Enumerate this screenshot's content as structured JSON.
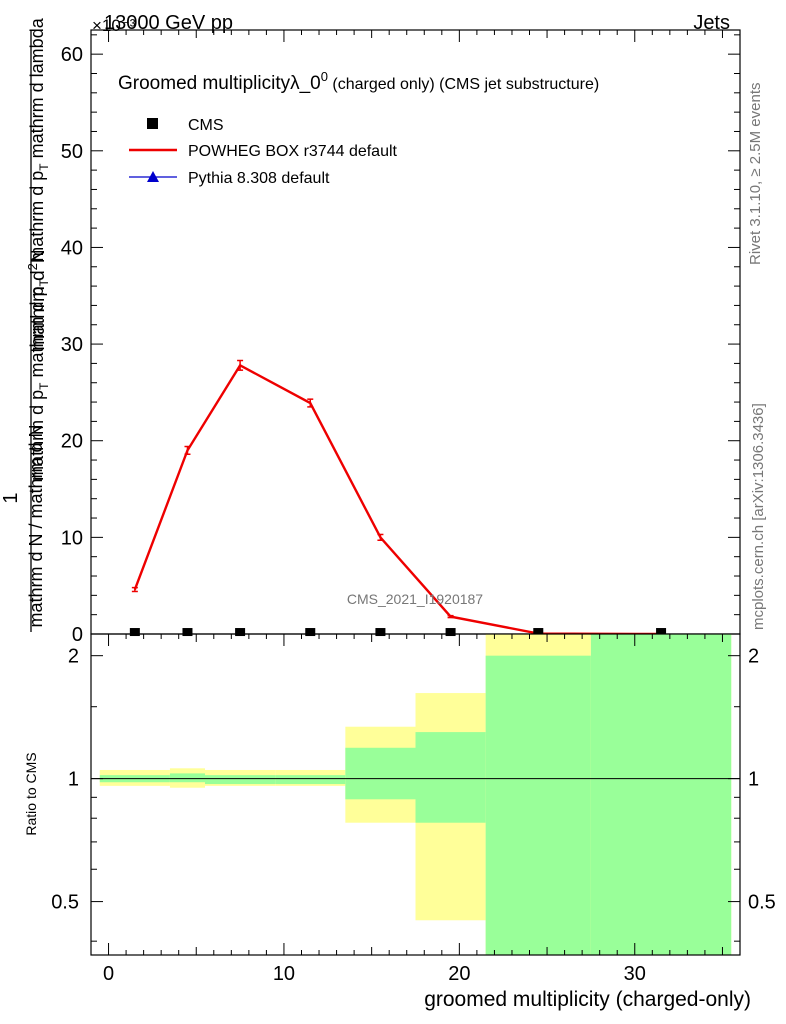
{
  "header": {
    "energy_label": "13000 GeV pp",
    "process_label": "Jets",
    "exponent_label": "×10⁻³"
  },
  "side_text": {
    "rivet": "Rivet 3.1.10, ≥ 2.5M events",
    "mcplots": "mcplots.cern.ch [arXiv:1306.3436]"
  },
  "chart_data": {
    "type": "line",
    "title": "Groomed multiplicityλ_0⁰ (charged only) (CMS jet substructure)",
    "analysis_label": "CMS_2021_I1920187",
    "xlabel": "groomed multiplicity (charged-only)",
    "ylabel_main": "1 / mathrm d N / mathrm d p_T mathrm d p_T mathrm d lambda · mathrm d²N",
    "ylabel_ratio": "Ratio to CMS",
    "xlim": [
      -1,
      36
    ],
    "ylim_main": [
      0,
      62.5
    ],
    "ylim_ratio": [
      0.37,
      2.26
    ],
    "xticks": [
      0,
      10,
      20,
      30
    ],
    "yticks_main": [
      0,
      10,
      20,
      30,
      40,
      50,
      60
    ],
    "yticks_ratio": [
      0.5,
      1,
      2
    ],
    "legend_position": "top-left",
    "legend": [
      {
        "label": "CMS",
        "marker": "square",
        "color": "#000000"
      },
      {
        "label": "POWHEG BOX r3744 default",
        "marker": "line",
        "color": "#ee0000"
      },
      {
        "label": "Pythia 8.308 default",
        "marker": "triangle",
        "color": "#0000cc"
      }
    ],
    "series": [
      {
        "name": "CMS",
        "x": [
          1.5,
          4.5,
          7.5,
          11.5,
          15.5,
          19.5,
          24.5,
          31.5
        ],
        "y": [
          0.1,
          0.1,
          0.1,
          0.1,
          0.1,
          0.1,
          0.1,
          0.1
        ]
      },
      {
        "name": "POWHEG BOX r3744 default",
        "x": [
          1.5,
          4.5,
          7.5,
          11.5,
          15.5,
          19.5,
          24.5,
          31.5
        ],
        "y": [
          4.6,
          19.0,
          27.8,
          23.9,
          10.0,
          1.8,
          0.05,
          0.0
        ],
        "yerr": [
          0.2,
          0.4,
          0.5,
          0.4,
          0.3,
          0.1,
          0.02,
          0.0
        ]
      },
      {
        "name": "Pythia 8.308 default",
        "x": [
          1.5,
          4.5,
          7.5,
          11.5,
          15.5,
          19.5,
          24.5,
          31.5
        ],
        "y": [
          0.05,
          0.05,
          0.05,
          0.05,
          0.05,
          0.05,
          0.05,
          0.05
        ]
      }
    ],
    "ratio_bands": {
      "bins": [
        [
          -0.5,
          3.5
        ],
        [
          3.5,
          5.5
        ],
        [
          5.5,
          9.5
        ],
        [
          9.5,
          13.5
        ],
        [
          13.5,
          17.5
        ],
        [
          17.5,
          21.5
        ],
        [
          21.5,
          27.5
        ],
        [
          27.5,
          35.5
        ]
      ],
      "yellow": [
        [
          0.96,
          1.05
        ],
        [
          0.95,
          1.06
        ],
        [
          0.96,
          1.05
        ],
        [
          0.96,
          1.05
        ],
        [
          0.78,
          1.34
        ],
        [
          0.45,
          1.62
        ],
        [
          0.3,
          2.3
        ],
        [
          0.3,
          2.3
        ]
      ],
      "green": [
        [
          0.98,
          1.02
        ],
        [
          0.98,
          1.03
        ],
        [
          0.97,
          1.02
        ],
        [
          0.97,
          1.02
        ],
        [
          0.89,
          1.19
        ],
        [
          0.78,
          1.3
        ],
        [
          0.3,
          2.0
        ],
        [
          0.3,
          2.3
        ]
      ]
    }
  }
}
